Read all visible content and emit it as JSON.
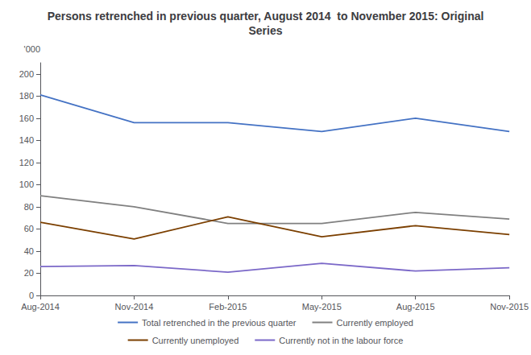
{
  "chart_data": {
    "type": "line",
    "title": "Persons retrenched in previous quarter, August 2014  to November 2015: Original\nSeries",
    "ylabel": "'000",
    "categories": [
      "Aug-2014",
      "Nov-2014",
      "Feb-2015",
      "May-2015",
      "Aug-2015",
      "Nov-2015"
    ],
    "series": [
      {
        "name": "Total retrenched in the previous quarter",
        "color": "#4472C4",
        "values": [
          181,
          156,
          156,
          148,
          160,
          148
        ]
      },
      {
        "name": "Currently employed",
        "color": "#808080",
        "values": [
          90,
          80,
          65,
          65,
          75,
          69
        ]
      },
      {
        "name": "Currently unemployed",
        "color": "#7B3F00",
        "values": [
          66,
          51,
          71,
          53,
          63,
          55
        ]
      },
      {
        "name": "Currently not in the labour force",
        "color": "#7B68C8",
        "values": [
          26,
          27,
          21,
          29,
          22,
          25
        ]
      }
    ],
    "ylim": [
      0,
      210
    ],
    "yticks": [
      0,
      20,
      40,
      60,
      80,
      100,
      120,
      140,
      160,
      180,
      200
    ],
    "grid": false,
    "legend": "bottom"
  }
}
